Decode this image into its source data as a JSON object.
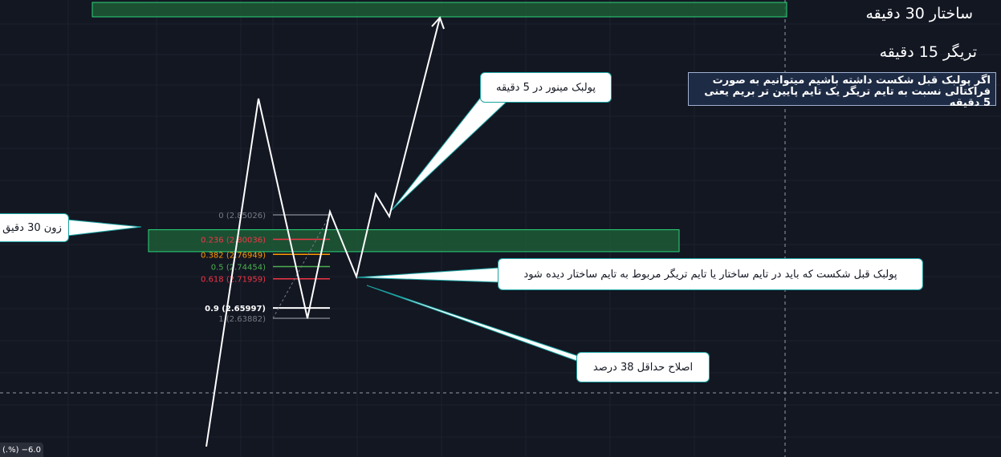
{
  "header": {
    "structure_title": "ساختار 30 دقیقه",
    "trigger_title": "تریگر 15 دقیقه"
  },
  "note": {
    "text": "اگر پولبک قبل شکست داشته باشیم میتوانیم به صورت فراکتالی نسبت به تایم تریگر یک تایم پایین تر بریم یعنی 5 دقیقه"
  },
  "callouts": {
    "zone_30": "زون 30 دقیق",
    "minor_pullback": "پولبک مینور در 5 دقیقه",
    "pullback_before_break": "پولبک قبل شکست که باید در تایم ساختار یا تایم تریگر مربوط به تایم ساختار دیده شود",
    "min_correction": "اصلاح حداقل 38 درصد"
  },
  "status_bar": {
    "text": "(.%) −6.0"
  },
  "colors": {
    "background": "#131722",
    "zone_fill": "#1f5a36",
    "zone_border": "#2bd57a",
    "line": "#ffffff",
    "callout_border": "#1ba3a3"
  },
  "chart_data": {
    "type": "line",
    "title": "",
    "xlabel": "",
    "ylabel": "",
    "fibonacci": [
      {
        "level": "0",
        "price": 2.85026,
        "label": "0 (2.85026)",
        "color": "#787b86"
      },
      {
        "level": "0.236",
        "price": 2.80036,
        "label": "0.236 (2.80036)",
        "color": "#f23645"
      },
      {
        "level": "0.382",
        "price": 2.76949,
        "label": "0.382 (2.76949)",
        "color": "#ff9800"
      },
      {
        "level": "0.5",
        "price": 2.74454,
        "label": "0.5 (2.74454)",
        "color": "#4caf50"
      },
      {
        "level": "0.618",
        "price": 2.71959,
        "label": "0.618 (2.71959)",
        "color": "#f23645"
      },
      {
        "level": "0.9",
        "price": 2.65997,
        "label": "0.9 (2.65997)",
        "color": "#ffffff"
      },
      {
        "level": "1",
        "price": 2.63882,
        "label": "1 (2.63882)",
        "color": "#787b86"
      }
    ],
    "zones": [
      {
        "name": "zone-30m",
        "price_top": 2.82,
        "price_bottom": 2.775
      },
      {
        "name": "target-zone",
        "price_top": 3.38,
        "price_bottom": 3.355
      }
    ]
  }
}
